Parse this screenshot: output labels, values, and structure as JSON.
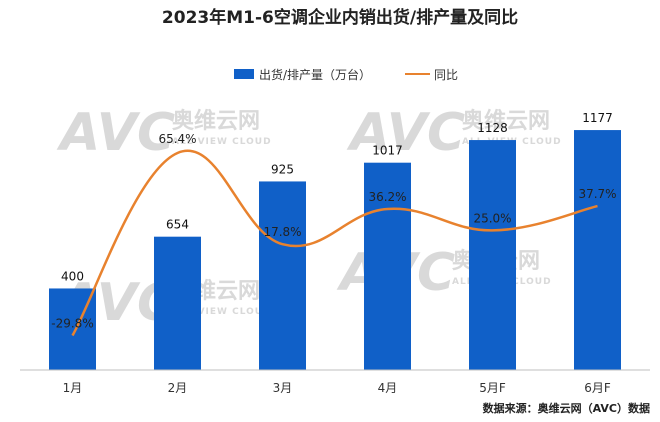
{
  "chart_data": {
    "type": "bar",
    "title": "2023年M1-6空调企业内销出货/排产量及同比",
    "categories": [
      "1月",
      "2月",
      "3月",
      "4月",
      "5月F",
      "6月F"
    ],
    "series": [
      {
        "name": "出货/排产量（万台）",
        "type": "bar",
        "axis": "left",
        "values": [
          400,
          654,
          925,
          1017,
          1128,
          1177
        ],
        "labels": [
          "400",
          "654",
          "925",
          "1017",
          "1128",
          "1177"
        ]
      },
      {
        "name": "同比",
        "type": "line",
        "axis": "right",
        "smooth": true,
        "values": [
          -29.8,
          65.4,
          17.8,
          36.2,
          25.0,
          37.7
        ],
        "labels": [
          "-29.8%",
          "65.4%",
          "17.8%",
          "36.2%",
          "25.0%",
          "37.7%"
        ]
      }
    ],
    "ylim": [
      0,
      1300
    ],
    "y2lim": [
      -40,
      80
    ],
    "grid": false,
    "legend": "top-center"
  },
  "watermark": {
    "logo": "AVC",
    "name": "奥维云网",
    "tagline": "ALL VIEW CLOUD"
  },
  "source": "数据来源：奥维云网（AVC）数据",
  "colors": {
    "bar": "#1060C8",
    "line": "#E8822E",
    "axis": "#BFBFBF",
    "watermark": "#D9D9D9"
  }
}
